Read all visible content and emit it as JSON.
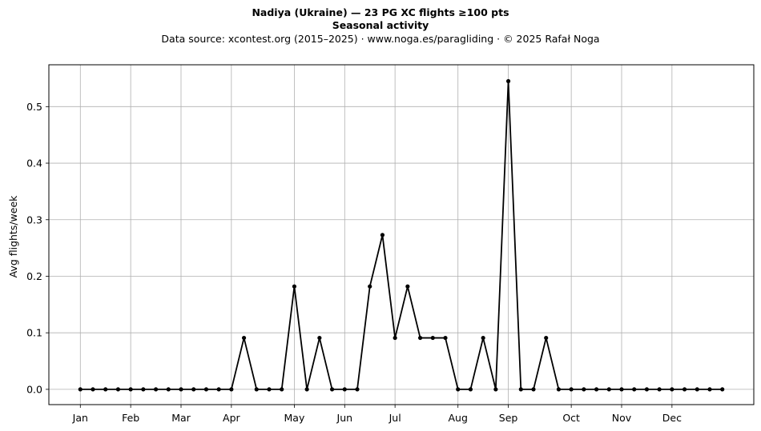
{
  "chart_data": {
    "type": "line",
    "title": "Nadiya (Ukraine)  —  23 PG XC flights ≥100 pts",
    "subtitle": "Seasonal activity",
    "source": "Data source: xcontest.org (2015–2025)  ·  www.noga.es/paragliding  ·  © 2025 Rafał Noga",
    "xlabel": "",
    "ylabel": "Avg flights/week",
    "ylim": [
      -0.027,
      0.574
    ],
    "xlim": [
      -2.5,
      53.5
    ],
    "yticks": [
      0.0,
      0.1,
      0.2,
      0.3,
      0.4,
      0.5
    ],
    "ytick_labels": [
      "0.0",
      "0.1",
      "0.2",
      "0.3",
      "0.4",
      "0.5"
    ],
    "xticks": [
      0,
      4,
      8,
      12,
      17,
      21,
      25,
      30,
      34,
      39,
      43,
      47
    ],
    "xtick_labels": [
      "Jan",
      "Feb",
      "Mar",
      "Apr",
      "May",
      "Jun",
      "Jul",
      "Aug",
      "Sep",
      "Oct",
      "Nov",
      "Dec"
    ],
    "grid": true,
    "color": "#000000",
    "x": [
      0,
      1,
      2,
      3,
      4,
      5,
      6,
      7,
      8,
      9,
      10,
      11,
      12,
      13,
      14,
      15,
      16,
      17,
      18,
      19,
      20,
      21,
      22,
      23,
      24,
      25,
      26,
      27,
      28,
      29,
      30,
      31,
      32,
      33,
      34,
      35,
      36,
      37,
      38,
      39,
      40,
      41,
      42,
      43,
      44,
      45,
      46,
      47,
      48,
      49,
      50,
      51
    ],
    "values": [
      0,
      0,
      0,
      0,
      0,
      0,
      0,
      0,
      0,
      0,
      0,
      0,
      0,
      0.091,
      0,
      0,
      0,
      0.182,
      0,
      0.091,
      0,
      0,
      0,
      0.182,
      0.273,
      0.091,
      0.182,
      0.091,
      0.091,
      0.091,
      0,
      0,
      0.091,
      0,
      0.545,
      0,
      0,
      0.091,
      0,
      0,
      0,
      0,
      0,
      0,
      0,
      0,
      0,
      0,
      0,
      0,
      0,
      0
    ]
  }
}
